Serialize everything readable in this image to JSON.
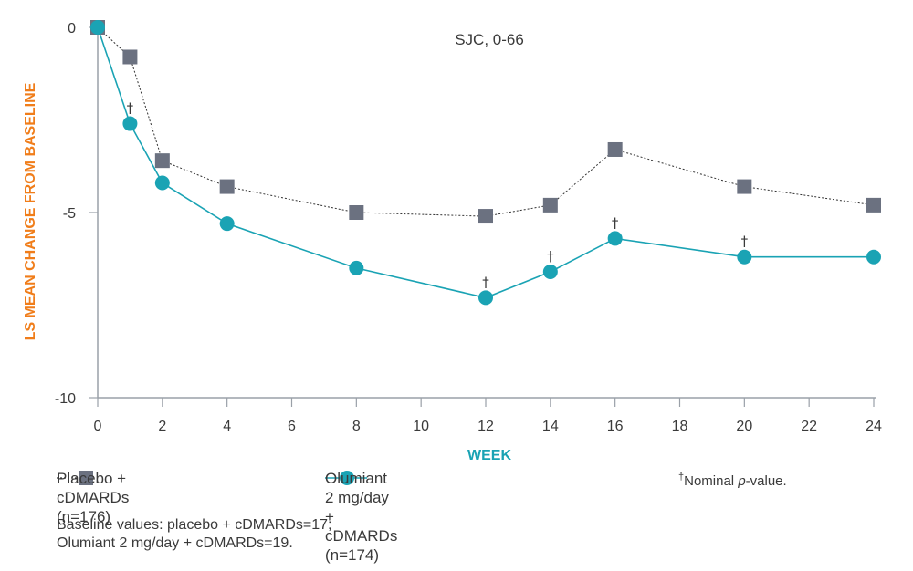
{
  "chart_data": {
    "type": "line",
    "title": "SJC, 0-66",
    "xlabel": "WEEK",
    "ylabel": "LS MEAN CHANGE FROM BASELINE",
    "xlim": [
      0,
      24
    ],
    "ylim": [
      -10,
      0
    ],
    "x_ticks": [
      "0",
      "2",
      "4",
      "6",
      "8",
      "10",
      "12",
      "14",
      "16",
      "18",
      "20",
      "22",
      "24"
    ],
    "y_ticks": [
      "0",
      "-5",
      "-10"
    ],
    "series": [
      {
        "name": "Placebo + cDMARDs",
        "marker": "square",
        "line_style": "dotted",
        "color": "#6b7180",
        "x": [
          0,
          1,
          2,
          4,
          8,
          12,
          14,
          16,
          20,
          24
        ],
        "values": [
          0,
          -0.8,
          -3.6,
          -4.3,
          -5.0,
          -5.1,
          -4.8,
          -3.3,
          -4.3,
          -4.8
        ]
      },
      {
        "name": "Olumiant 2 mg/day + cDMARDs",
        "marker": "circle",
        "line_style": "solid",
        "color": "#1aa3b4",
        "x": [
          0,
          1,
          2,
          4,
          8,
          12,
          14,
          16,
          20,
          24
        ],
        "values": [
          0,
          -2.6,
          -4.2,
          -5.3,
          -6.5,
          -7.3,
          -6.6,
          -5.7,
          -6.2,
          -6.2
        ],
        "dagger_at_x": [
          1,
          12,
          14,
          16,
          20
        ]
      }
    ]
  },
  "legend": {
    "placebo_line1": "Placebo + cDMARDs",
    "placebo_line2": "(n=176)",
    "olumiant_line1": "Olumiant 2 mg/day + cDMARDs",
    "olumiant_line2": "(n=174)",
    "dagger_symbol": "†",
    "footnote_prefix": "Nominal ",
    "footnote_p": "p",
    "footnote_suffix": "-value."
  },
  "baseline_note": {
    "line1": "Baseline values: placebo + cDMARDs=17;",
    "line2": "Olumiant 2 mg/day + cDMARDs=19."
  },
  "colors": {
    "ylabel": "#f07d1a",
    "xlabel": "#1aa3b4",
    "axis": "#9aa0a8"
  }
}
